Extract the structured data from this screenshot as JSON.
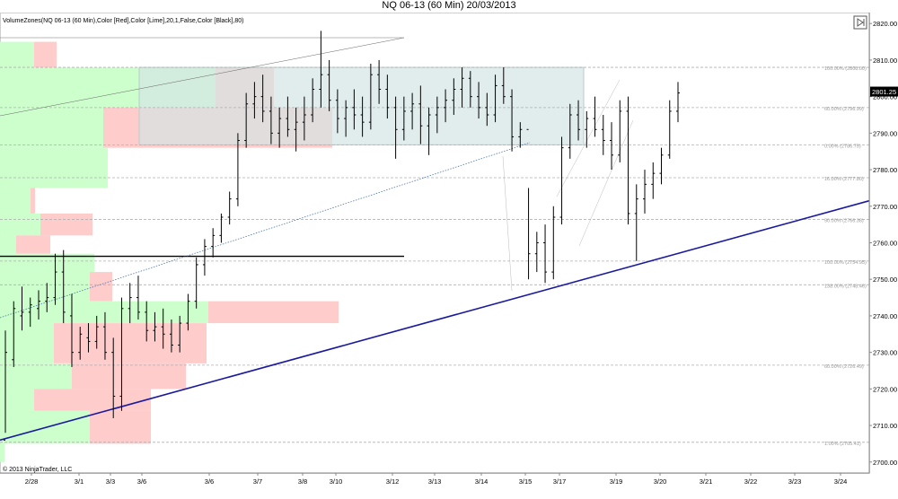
{
  "window": {
    "title": "NQ 06-13 (60 Min)  20/03/2013"
  },
  "indicator_label": "VolumeZones(NQ 06-13 (60 Min),Color [Red],Color [Lime],20,1,False,Color [Black],80)",
  "copyright": "© 2013 NinjaTrader, LLC",
  "last_price_label": "2801.25",
  "colors": {
    "up_volume": "#ccffcc",
    "down_volume": "#ffcccc",
    "fib_box": "#d4e4e4",
    "trendline": "#1a1aa0",
    "price_bars": "#000000",
    "support_line": "#000000"
  },
  "chart_data": {
    "type": "ohlc",
    "title": "NQ 06-13 (60 Min)  20/03/2013",
    "ylim": [
      2697,
      2823
    ],
    "y_ticks": [
      {
        "value": 2820,
        "label": "2820.00"
      },
      {
        "value": 2810,
        "label": "2810.00"
      },
      {
        "value": 2800,
        "label": "2800.00"
      },
      {
        "value": 2790,
        "label": "2790.00"
      },
      {
        "value": 2780,
        "label": "2780.00"
      },
      {
        "value": 2770,
        "label": "2770.00"
      },
      {
        "value": 2760,
        "label": "2760.00"
      },
      {
        "value": 2750,
        "label": "2750.00"
      },
      {
        "value": 2740,
        "label": "2740.00"
      },
      {
        "value": 2730,
        "label": "2730.00"
      },
      {
        "value": 2720,
        "label": "2720.00"
      },
      {
        "value": 2710,
        "label": "2710.00"
      },
      {
        "value": 2700,
        "label": "2700.00"
      }
    ],
    "x_ticks": [
      "2/28",
      "3/1",
      "3/3",
      "3/6",
      "3/6",
      "3/7",
      "3/8",
      "3/10",
      "3/12",
      "3/13",
      "3/14",
      "3/15",
      "3/17",
      "3/19",
      "3/20",
      "3/21",
      "3/22",
      "3/23",
      "3/24"
    ],
    "fib_levels": [
      {
        "value": 2808.0,
        "label": "100.00% (2808.00)"
      },
      {
        "value": 2797.0,
        "label": "60.00% (2796.99)"
      },
      {
        "value": 2786.8,
        "label": "0.00% (2786.75)"
      },
      {
        "value": 2777.8,
        "label": "16.00% (2777.80)"
      },
      {
        "value": 2766.4,
        "label": "50.00% (2766.38)"
      },
      {
        "value": 2755.0,
        "label": "100.00% (2754.95)"
      },
      {
        "value": 2748.5,
        "label": "138.00% (2748.46)"
      },
      {
        "value": 2726.5,
        "label": "60.00% (2726.49)"
      },
      {
        "value": 2705.4,
        "label": "1.00% (2705.41)"
      }
    ],
    "fib_box": {
      "y_top": 2808,
      "y_bottom": 2786.8
    },
    "horizontal_line": 2756.3,
    "last_price": 2801.25,
    "volume_zones": [
      {
        "y_top": 2815,
        "y_bottom": 2808,
        "up": 38,
        "down": 25
      },
      {
        "y_top": 2808,
        "y_bottom": 2797,
        "up": 240,
        "down": 65
      },
      {
        "y_top": 2797,
        "y_bottom": 2786,
        "up": 115,
        "down": 255
      },
      {
        "y_top": 2786,
        "y_bottom": 2775,
        "up": 120,
        "down": 0
      },
      {
        "y_top": 2775,
        "y_bottom": 2768,
        "up": 34,
        "down": 5
      },
      {
        "y_top": 2768,
        "y_bottom": 2762,
        "up": 45,
        "down": 58
      },
      {
        "y_top": 2762,
        "y_bottom": 2757,
        "up": 18,
        "down": 38
      },
      {
        "y_top": 2757,
        "y_bottom": 2752,
        "up": 105,
        "down": 0
      },
      {
        "y_top": 2752,
        "y_bottom": 2744,
        "up": 100,
        "down": 25
      },
      {
        "y_top": 2744,
        "y_bottom": 2738,
        "up": 232,
        "down": 145
      },
      {
        "y_top": 2738,
        "y_bottom": 2727,
        "up": 60,
        "down": 170
      },
      {
        "y_top": 2727,
        "y_bottom": 2720,
        "up": 80,
        "down": 127
      },
      {
        "y_top": 2720,
        "y_bottom": 2714,
        "up": 38,
        "down": 130
      },
      {
        "y_top": 2714,
        "y_bottom": 2705,
        "up": 100,
        "down": 68
      },
      {
        "y_top": 2705,
        "y_bottom": 2700,
        "up": 5,
        "down": 0
      }
    ],
    "trendline": {
      "start": [
        0,
        2706
      ],
      "end": [
        1,
        2771.5
      ]
    },
    "ohlc_series": [
      [
        2706,
        2736,
        2708,
        2730
      ],
      [
        2728,
        2744,
        2726,
        2742
      ],
      [
        2740,
        2748,
        2736,
        2741
      ],
      [
        2741,
        2745,
        2737,
        2743
      ],
      [
        2742,
        2747,
        2739,
        2744
      ],
      [
        2744,
        2749,
        2741,
        2745
      ],
      [
        2745,
        2757,
        2743,
        2752
      ],
      [
        2752,
        2758,
        2738,
        2741
      ],
      [
        2740,
        2746,
        2726,
        2730
      ],
      [
        2730,
        2737,
        2728,
        2735
      ],
      [
        2734,
        2738,
        2730,
        2733
      ],
      [
        2733,
        2740,
        2731,
        2737
      ],
      [
        2737,
        2741,
        2728,
        2730
      ],
      [
        2730,
        2734,
        2712,
        2718
      ],
      [
        2718,
        2745,
        2714,
        2742
      ],
      [
        2742,
        2749,
        2738,
        2745
      ],
      [
        2745,
        2751,
        2739,
        2741
      ],
      [
        2741,
        2744,
        2733,
        2736
      ],
      [
        2736,
        2741,
        2733,
        2737
      ],
      [
        2737,
        2742,
        2731,
        2735
      ],
      [
        2735,
        2739,
        2730,
        2732
      ],
      [
        2732,
        2740,
        2730,
        2738
      ],
      [
        2738,
        2746,
        2736,
        2744
      ],
      [
        2744,
        2756,
        2742,
        2754
      ],
      [
        2754,
        2761,
        2751,
        2759
      ],
      [
        2759,
        2764,
        2756,
        2762
      ],
      [
        2762,
        2768,
        2760,
        2767
      ],
      [
        2767,
        2774,
        2765,
        2772
      ],
      [
        2772,
        2790,
        2770,
        2788
      ],
      [
        2788,
        2801,
        2786,
        2798
      ],
      [
        2798,
        2804,
        2794,
        2800
      ],
      [
        2800,
        2806,
        2793,
        2796
      ],
      [
        2796,
        2800,
        2787,
        2790
      ],
      [
        2790,
        2797,
        2786,
        2794
      ],
      [
        2794,
        2800,
        2789,
        2791
      ],
      [
        2791,
        2797,
        2785,
        2793
      ],
      [
        2793,
        2800,
        2788,
        2795
      ],
      [
        2795,
        2805,
        2793,
        2802
      ],
      [
        2802,
        2818,
        2797,
        2806
      ],
      [
        2806,
        2810,
        2796,
        2799
      ],
      [
        2799,
        2802,
        2790,
        2794
      ],
      [
        2794,
        2799,
        2789,
        2797
      ],
      [
        2797,
        2802,
        2791,
        2795
      ],
      [
        2795,
        2800,
        2789,
        2793
      ],
      [
        2793,
        2809,
        2791,
        2806
      ],
      [
        2806,
        2810,
        2798,
        2802
      ],
      [
        2802,
        2806,
        2794,
        2797
      ],
      [
        2797,
        2800,
        2783,
        2791
      ],
      [
        2791,
        2800,
        2788,
        2796
      ],
      [
        2796,
        2801,
        2791,
        2798
      ],
      [
        2798,
        2803,
        2787,
        2792
      ],
      [
        2792,
        2797,
        2784,
        2795
      ],
      [
        2795,
        2800,
        2790,
        2797
      ],
      [
        2797,
        2802,
        2793,
        2799
      ],
      [
        2799,
        2805,
        2795,
        2802
      ],
      [
        2802,
        2808,
        2797,
        2805
      ],
      [
        2805,
        2807,
        2797,
        2800
      ],
      [
        2800,
        2804,
        2794,
        2797
      ],
      [
        2797,
        2801,
        2792,
        2795
      ],
      [
        2795,
        2806,
        2793,
        2803
      ],
      [
        2803,
        2808,
        2798,
        2800
      ],
      [
        2800,
        2802,
        2785,
        2789
      ],
      [
        2789,
        2793,
        2786,
        2791
      ],
      [
        2791,
        2775,
        2750,
        2757
      ],
      [
        2757,
        2763,
        2752,
        2760
      ],
      [
        2760,
        2765,
        2749,
        2752
      ],
      [
        2752,
        2770,
        2750,
        2767
      ],
      [
        2767,
        2789,
        2765,
        2786
      ],
      [
        2786,
        2798,
        2783,
        2795
      ],
      [
        2795,
        2799,
        2788,
        2791
      ],
      [
        2791,
        2796,
        2786,
        2794
      ],
      [
        2794,
        2800,
        2789,
        2791
      ],
      [
        2791,
        2795,
        2784,
        2788
      ],
      [
        2788,
        2793,
        2780,
        2784
      ],
      [
        2784,
        2799,
        2782,
        2796
      ],
      [
        2796,
        2800,
        2765,
        2768
      ],
      [
        2768,
        2776,
        2755,
        2772
      ],
      [
        2772,
        2780,
        2768,
        2776
      ],
      [
        2776,
        2782,
        2772,
        2779
      ],
      [
        2779,
        2786,
        2776,
        2784
      ],
      [
        2784,
        2799,
        2783,
        2796
      ],
      [
        2796,
        2804,
        2793,
        2801
      ]
    ]
  }
}
